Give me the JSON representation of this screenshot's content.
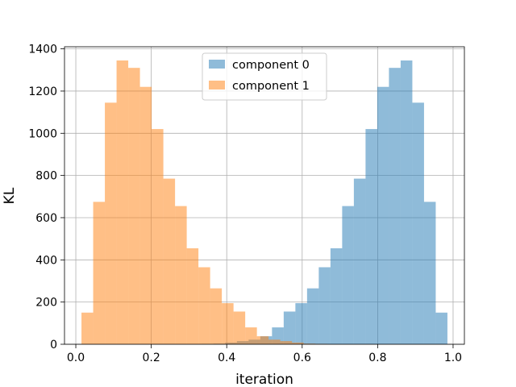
{
  "chart_data": {
    "type": "histogram",
    "xlabel": "iteration",
    "ylabel": "KL",
    "xlim": [
      -0.03,
      1.03
    ],
    "ylim": [
      0,
      1410
    ],
    "x_ticks": [
      0.0,
      0.2,
      0.4,
      0.6,
      0.8,
      1.0
    ],
    "x_tick_labels": [
      "0.0",
      "0.2",
      "0.4",
      "0.6",
      "0.8",
      "1.0"
    ],
    "y_ticks": [
      0,
      200,
      400,
      600,
      800,
      1000,
      1200,
      1400
    ],
    "y_tick_labels": [
      "0",
      "200",
      "400",
      "600",
      "800",
      "1000",
      "1200",
      "1400"
    ],
    "grid": true,
    "legend_position": "top-center",
    "series": [
      {
        "name": "component 0",
        "color": "#1f77b4",
        "alpha": 0.5,
        "bin_edges": [
          0.334,
          0.365,
          0.396,
          0.427,
          0.458,
          0.489,
          0.52,
          0.551,
          0.582,
          0.613,
          0.644,
          0.675,
          0.706,
          0.737,
          0.768,
          0.799,
          0.83,
          0.861,
          0.892,
          0.923,
          0.954,
          0.985
        ],
        "counts": [
          2,
          3,
          8,
          15,
          22,
          38,
          80,
          155,
          195,
          265,
          365,
          455,
          655,
          785,
          1020,
          1220,
          1310,
          1345,
          1145,
          675,
          150
        ]
      },
      {
        "name": "component 1",
        "color": "#ff7f0e",
        "alpha": 0.5,
        "bin_edges": [
          0.015,
          0.046,
          0.077,
          0.108,
          0.139,
          0.17,
          0.201,
          0.232,
          0.263,
          0.294,
          0.325,
          0.356,
          0.387,
          0.418,
          0.449,
          0.48,
          0.511,
          0.542,
          0.573,
          0.604,
          0.635,
          0.666
        ],
        "counts": [
          150,
          675,
          1145,
          1345,
          1310,
          1220,
          1020,
          785,
          655,
          455,
          365,
          265,
          195,
          155,
          80,
          38,
          22,
          15,
          8,
          3,
          2
        ]
      }
    ]
  }
}
